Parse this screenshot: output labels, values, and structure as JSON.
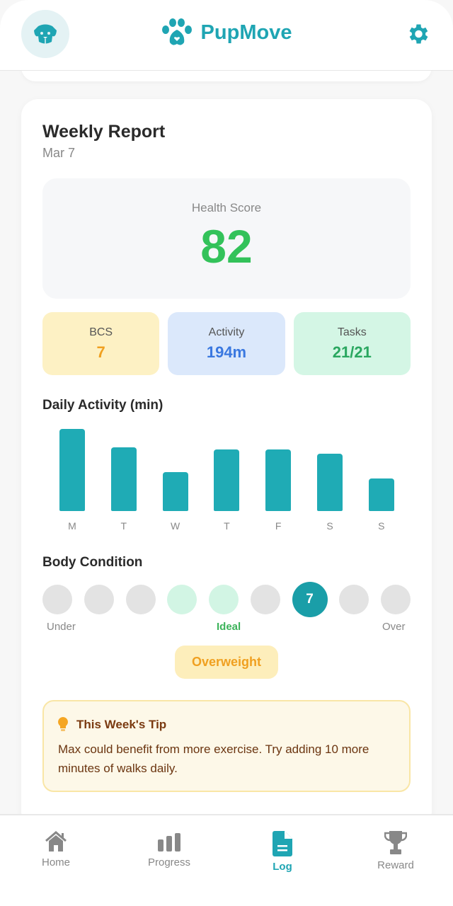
{
  "header": {
    "app_name": "PupMove",
    "avatar_icon": "dog-face-icon",
    "settings_icon": "gear-icon"
  },
  "report": {
    "title": "Weekly Report",
    "date": "Mar 7",
    "health_score_label": "Health Score",
    "health_score": "82",
    "stats": [
      {
        "label": "BCS",
        "value": "7",
        "bg": "#fdf1c4",
        "color": "#f0a020"
      },
      {
        "label": "Activity",
        "value": "194m",
        "bg": "#dbe8fb",
        "color": "#3a78e0"
      },
      {
        "label": "Tasks",
        "value": "21/21",
        "bg": "#d4f6e5",
        "color": "#2aa760"
      }
    ]
  },
  "chart_data": {
    "type": "bar",
    "title": "Daily Activity (min)",
    "categories": [
      "M",
      "T",
      "W",
      "T",
      "F",
      "S",
      "S"
    ],
    "values": [
      40,
      31,
      19,
      30,
      30,
      28,
      16
    ],
    "ylim": [
      0,
      42
    ]
  },
  "body_condition": {
    "title": "Body Condition",
    "scale": [
      1,
      2,
      3,
      4,
      5,
      6,
      7,
      8,
      9
    ],
    "ideal": [
      4,
      5
    ],
    "selected": 7,
    "selected_label": "7",
    "under_label": "Under",
    "ideal_label": "Ideal",
    "over_label": "Over",
    "status": "Overweight"
  },
  "tip": {
    "title": "This Week's Tip",
    "text": "Max could benefit from more exercise. Try adding 10 more minutes of walks daily."
  },
  "nav": [
    {
      "label": "Home",
      "icon": "home-icon"
    },
    {
      "label": "Progress",
      "icon": "bar-chart-icon"
    },
    {
      "label": "Log",
      "icon": "document-icon",
      "active": true
    },
    {
      "label": "Reward",
      "icon": "trophy-icon"
    }
  ],
  "colors": {
    "accent": "#1fa5b3",
    "score": "#33c25a"
  }
}
